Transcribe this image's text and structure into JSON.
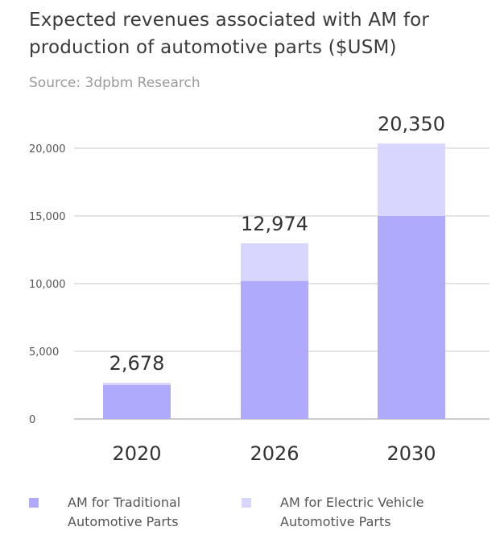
{
  "header": {
    "title": "Expected revenues associated with AM for production of automotive parts ($USM)",
    "subtitle": "Source: 3dpbm Research"
  },
  "legend": {
    "items": [
      {
        "label": "AM for Traditional Automotive Parts",
        "color": "#b0aafc"
      },
      {
        "label": "AM for Electric Vehicle Automotive Parts",
        "color": "#d8d5fe"
      }
    ]
  },
  "chart_data": {
    "type": "bar",
    "stacked": true,
    "categories": [
      "2020",
      "2026",
      "2030"
    ],
    "series": [
      {
        "name": "AM for Traditional Automotive Parts",
        "values": [
          2500,
          10200,
          15000
        ],
        "color": "#b0aafc"
      },
      {
        "name": "AM for Electric Vehicle Automotive Parts",
        "values": [
          178,
          2774,
          5350
        ],
        "color": "#d8d5fe"
      }
    ],
    "totals": [
      "2,678",
      "12,974",
      "20,350"
    ],
    "yticks": [
      0,
      5000,
      10000,
      15000,
      20000
    ],
    "ytick_labels": [
      "0",
      "5,000",
      "10,000",
      "15,000",
      "20,000"
    ],
    "ylim": [
      0,
      20000
    ],
    "grid": true,
    "legend_position": "bottom"
  }
}
